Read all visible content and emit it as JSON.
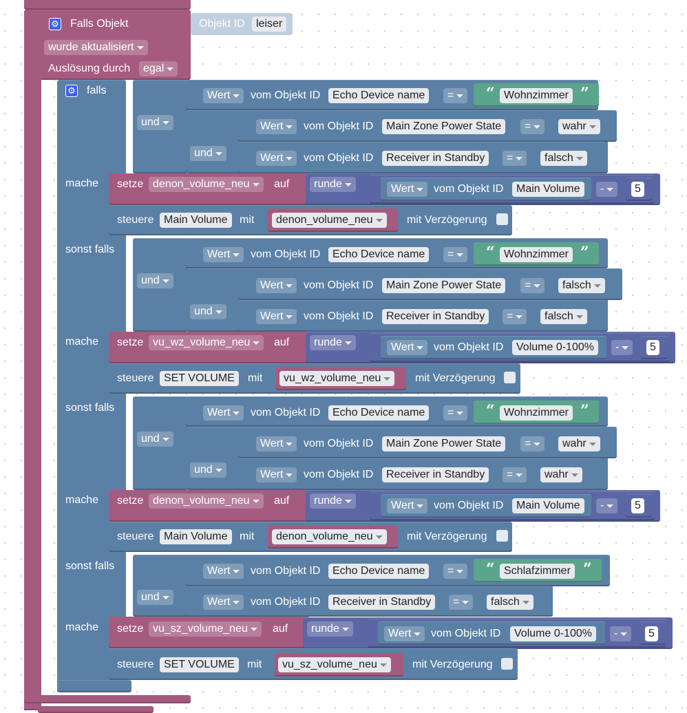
{
  "event": {
    "title": "Falls Objekt",
    "object_id_label": "Objekt ID",
    "object_id_value": "leiser",
    "updated": "wurde aktualisiert",
    "trigger_label": "Auslösung durch",
    "trigger_value": "egal"
  },
  "labels": {
    "falls": "falls",
    "sonst_falls": "sonst falls",
    "mache": "mache",
    "und": "und",
    "wert": "Wert",
    "vom_objekt_id": "vom Objekt ID",
    "setze": "setze",
    "auf": "auf",
    "runde": "runde",
    "steuere": "steuere",
    "mit": "mit",
    "mit_verzoegerung": "mit Verzögerung",
    "eq": "=",
    "minus": "-"
  },
  "objects": {
    "echo": "Echo Device name",
    "power": "Main Zone Power State",
    "standby": "Receiver in Standby",
    "main_volume": "Main Volume",
    "volume100": "Volume 0-100%",
    "set_volume": "SET VOLUME"
  },
  "values": {
    "wahr": "wahr",
    "falsch": "falsch",
    "wohnzimmer": "Wohnzimmer",
    "schlafzimmer": "Schlafzimmer",
    "five": "5"
  },
  "vars": {
    "denon": "denon_volume_neu",
    "vu_wz": "vu_wz_volume_neu",
    "vu_sz": "vu_sz_volume_neu"
  },
  "colors": {
    "event": "#a55b80",
    "control": "#5b80a5",
    "math": "#5b67a5",
    "text": "#5ba58c"
  }
}
